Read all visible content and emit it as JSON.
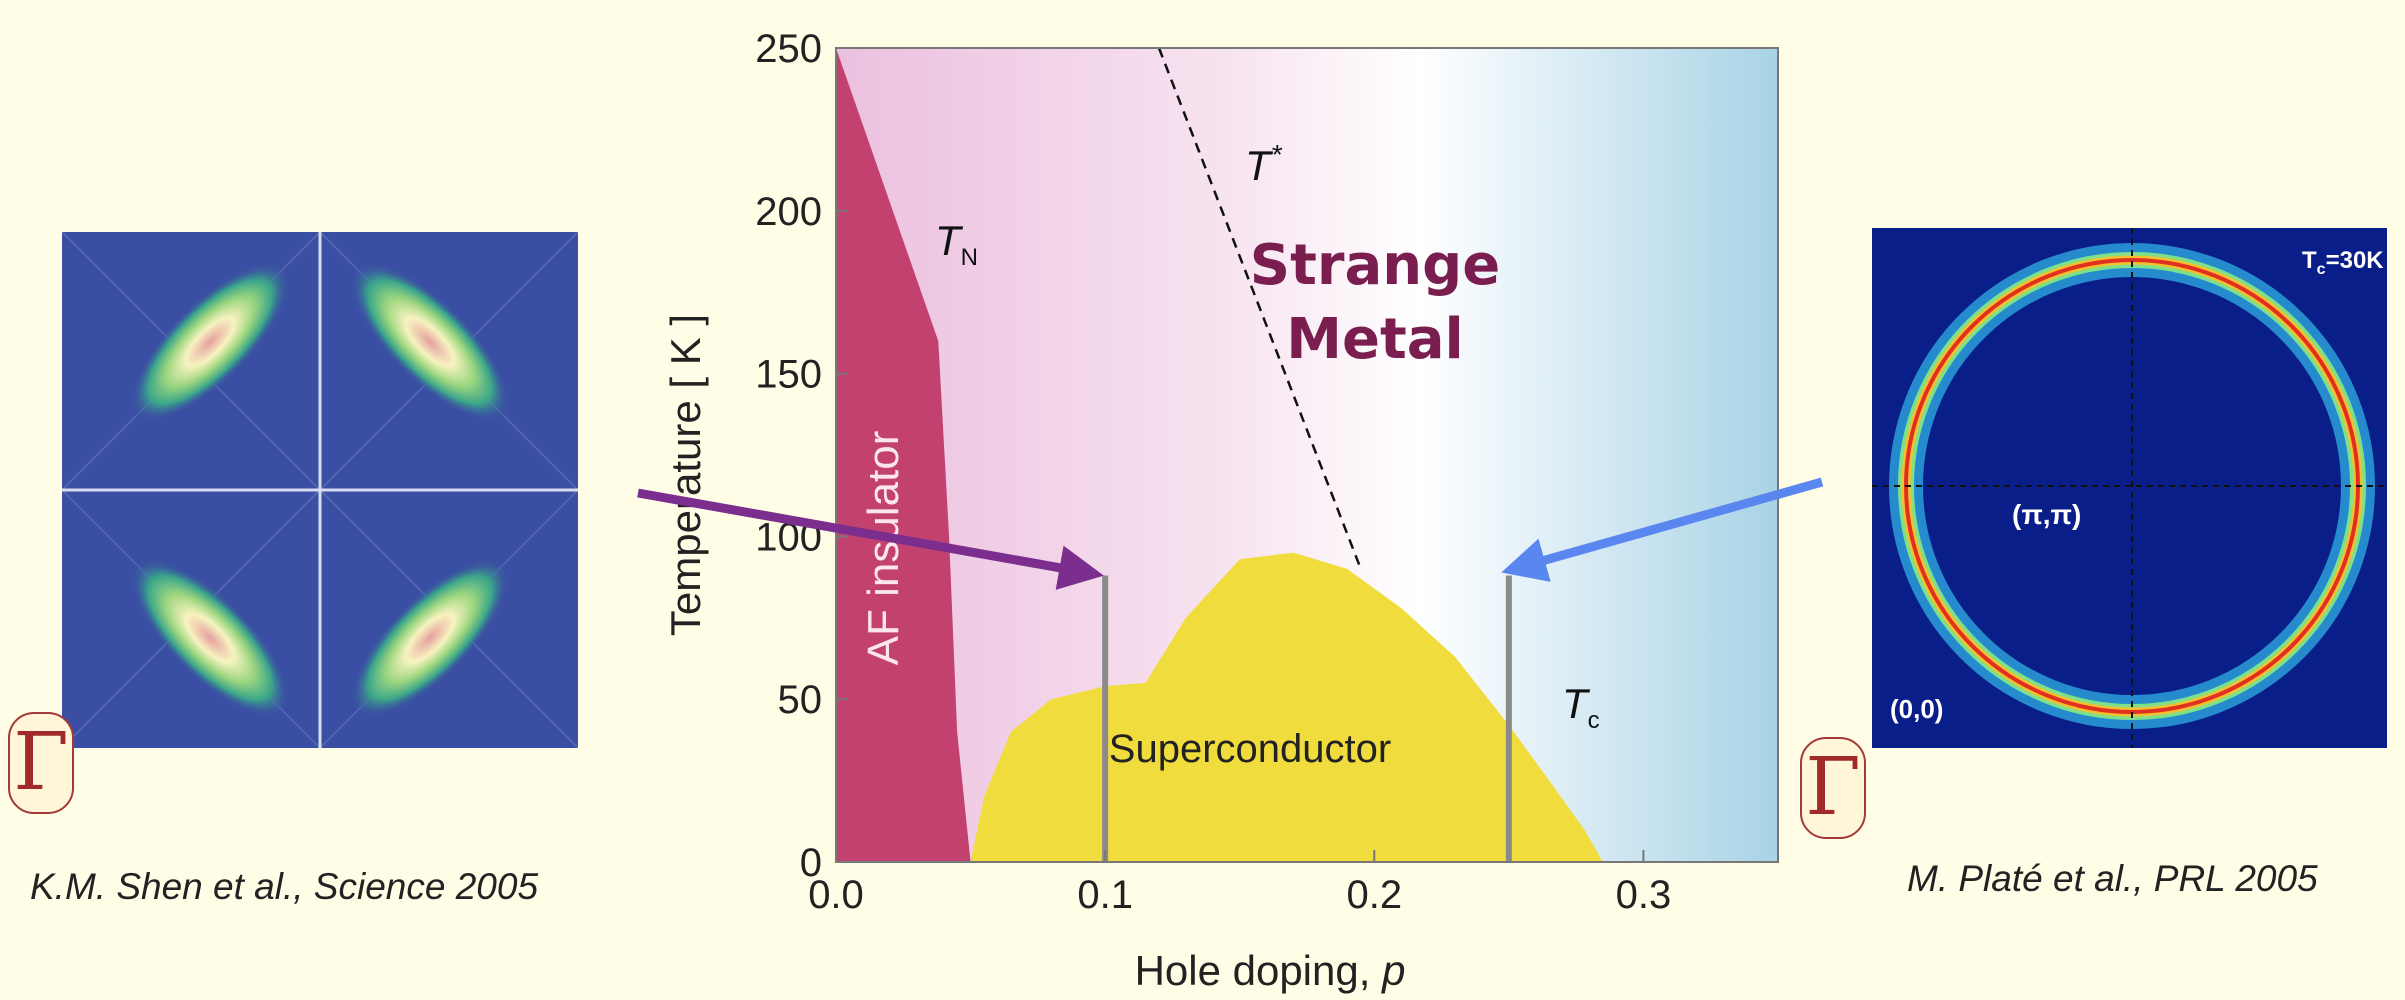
{
  "chart_data": {
    "type": "area",
    "xlabel": "Hole doping, p",
    "xlabel_text": "Hole doping, ",
    "xlabel_var": "p",
    "ylabel": "Temperature [ K ]",
    "xlim": [
      0.0,
      0.35
    ],
    "ylim": [
      0,
      250
    ],
    "x_ticks": [
      0.0,
      0.1,
      0.2,
      0.3
    ],
    "x_tick_labels": [
      "0.0",
      "0.1",
      "0.2",
      "0.3"
    ],
    "y_ticks": [
      0,
      50,
      100,
      150,
      200,
      250
    ],
    "y_tick_labels": [
      "0",
      "50",
      "100",
      "150",
      "200",
      "250"
    ],
    "regions": [
      {
        "name": "AF insulator",
        "color": "#c2416f",
        "boundary_x": [
          0.0,
          0.038,
          0.042,
          0.045,
          0.05
        ],
        "boundary_y": [
          250,
          160,
          100,
          40,
          0
        ]
      },
      {
        "name": "Superconductor",
        "color": "#f1dc3e",
        "x": [
          0.05,
          0.055,
          0.065,
          0.08,
          0.1,
          0.115,
          0.13,
          0.15,
          0.17,
          0.19,
          0.21,
          0.23,
          0.25,
          0.265,
          0.278,
          0.285
        ],
        "y": [
          0,
          20,
          40,
          50,
          54,
          55,
          75,
          93,
          95,
          90,
          78,
          63,
          42,
          25,
          10,
          0
        ]
      },
      {
        "name": "Strange Metal",
        "color": "#7a1e4f"
      }
    ],
    "lines": [
      {
        "name": "T*",
        "style": "dashed",
        "x": [
          0.12,
          0.195
        ],
        "y": [
          250,
          90
        ]
      },
      {
        "name": "TN"
      },
      {
        "name": "Tc"
      }
    ],
    "markers": [
      {
        "x": 0.1,
        "y_range": [
          0,
          88
        ]
      },
      {
        "x": 0.25,
        "y_range": [
          0,
          88
        ]
      }
    ],
    "label_T_star_main": "T",
    "label_T_star_sup": "*",
    "label_TN_main": "T",
    "label_TN_sub": "N",
    "label_Tc_main": "T",
    "label_Tc_sub": "c",
    "label_strange_1": "Strange",
    "label_strange_2": "Metal",
    "label_sc": "Superconductor",
    "label_af": "AF insulator"
  },
  "left_panel": {
    "citation": "K.M. Shen et al., Science 2005",
    "gamma": "Γ",
    "bg_color": "#3a4fa3",
    "arrow_color": "#7b2e8e"
  },
  "right_panel": {
    "citation": "M. Platé et al., PRL 2005",
    "gamma": "Γ",
    "tc_label": "T",
    "tc_sub": "c",
    "tc_value": "=30K",
    "label_pi": "(π,π)",
    "label_origin": "(0,0)",
    "bg_color": "#0a1e8a",
    "arrow_color": "#5a86f0"
  }
}
